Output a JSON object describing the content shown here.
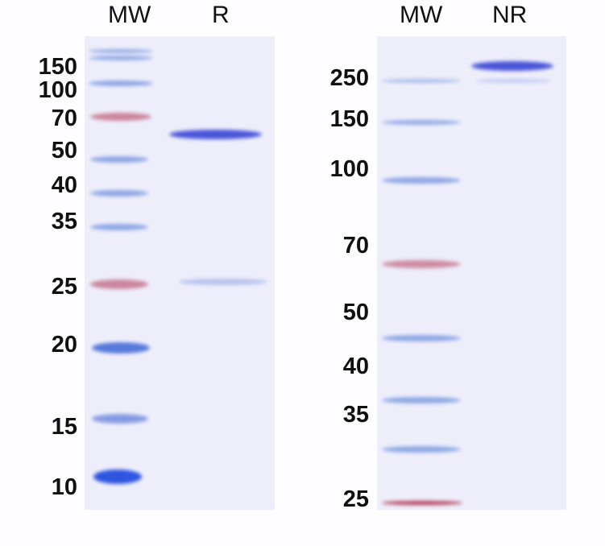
{
  "left_gel": {
    "lane_labels": [
      "MW",
      "R"
    ],
    "marker_labels": [
      "150",
      "100",
      "70",
      "50",
      "40",
      "35",
      "25",
      "20",
      "15",
      "10"
    ]
  },
  "right_gel": {
    "lane_labels": [
      "MW",
      "NR"
    ],
    "marker_labels": [
      "250",
      "150",
      "100",
      "70",
      "50",
      "40",
      "35",
      "25"
    ]
  },
  "colors": {
    "gel_background": "#eeeefb",
    "marker_band_blue": "#6f8fdc",
    "marker_band_red": "#c06a86",
    "sample_band": "#4a55d8"
  }
}
